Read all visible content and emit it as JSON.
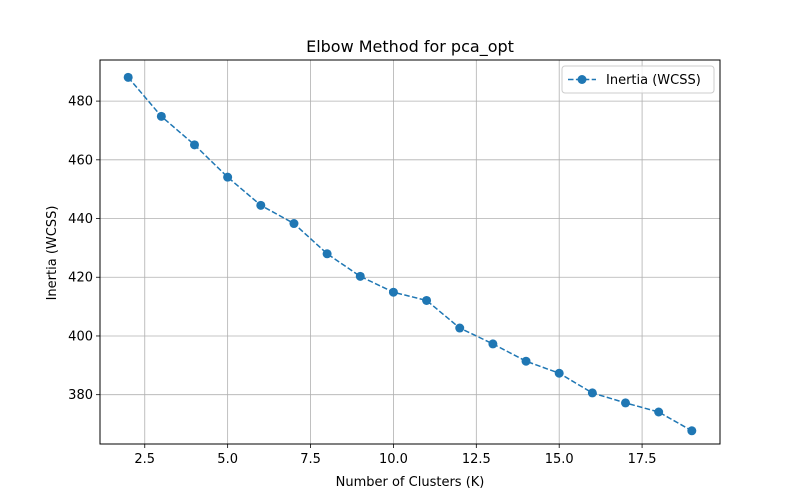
{
  "chart_data": {
    "type": "line",
    "title": "Elbow Method for pca_opt",
    "xlabel": "Number of Clusters (K)",
    "ylabel": "Inertia (WCSS)",
    "xlim": [
      1.15,
      19.85
    ],
    "ylim": [
      363.2,
      494.0
    ],
    "xticks": [
      2.5,
      5.0,
      7.5,
      10.0,
      12.5,
      15.0,
      17.5
    ],
    "xtick_labels": [
      "2.5",
      "5.0",
      "7.5",
      "10.0",
      "12.5",
      "15.0",
      "17.5"
    ],
    "yticks": [
      380,
      400,
      420,
      440,
      460,
      480
    ],
    "ytick_labels": [
      "380",
      "400",
      "420",
      "440",
      "460",
      "480"
    ],
    "grid": true,
    "legend_position": "top-right",
    "series": [
      {
        "name": "Inertia (WCSS)",
        "color": "#1f77b4",
        "line_style": "dashed",
        "marker": "circle",
        "x": [
          2,
          3,
          4,
          5,
          6,
          7,
          8,
          9,
          10,
          11,
          12,
          13,
          14,
          15,
          16,
          17,
          18,
          19
        ],
        "y": [
          488.1,
          474.8,
          465.1,
          454.1,
          444.5,
          438.3,
          428.0,
          420.3,
          414.9,
          412.1,
          402.7,
          397.3,
          391.4,
          387.3,
          380.6,
          377.2,
          374.1,
          367.7
        ]
      }
    ]
  }
}
